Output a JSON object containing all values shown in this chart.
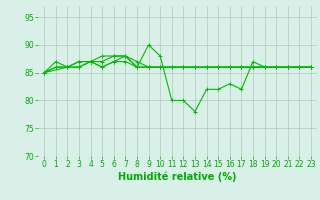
{
  "series": [
    {
      "x": [
        0,
        1,
        2,
        3,
        4,
        5,
        6,
        7,
        8,
        9,
        10,
        11,
        12,
        13,
        14,
        15,
        16,
        17,
        18,
        19,
        20,
        21,
        22,
        23
      ],
      "y": [
        85,
        87,
        86,
        87,
        87,
        88,
        88,
        88,
        86,
        90,
        88,
        80,
        80,
        78,
        82,
        82,
        83,
        82,
        87,
        86,
        86,
        86,
        86,
        86
      ]
    },
    {
      "x": [
        0,
        1,
        2,
        3,
        4,
        5,
        6,
        7,
        8,
        9,
        10,
        11,
        12,
        13,
        14,
        15,
        16,
        17,
        18,
        19,
        20,
        21,
        22,
        23
      ],
      "y": [
        85,
        86,
        86,
        86,
        87,
        86,
        87,
        88,
        86,
        86,
        86,
        86,
        86,
        86,
        86,
        86,
        86,
        86,
        86,
        86,
        86,
        86,
        86,
        86
      ]
    },
    {
      "x": [
        0,
        1,
        2,
        3,
        4,
        5,
        6,
        7,
        8,
        9,
        10,
        11,
        12,
        13,
        14,
        15,
        16,
        17,
        18,
        19,
        20,
        21,
        22,
        23
      ],
      "y": [
        85,
        86,
        86,
        87,
        87,
        87,
        88,
        88,
        87,
        86,
        86,
        86,
        86,
        86,
        86,
        86,
        86,
        86,
        86,
        86,
        86,
        86,
        86,
        86
      ]
    },
    {
      "x": [
        0,
        2,
        3,
        4,
        5,
        6,
        7,
        8,
        9,
        10,
        11,
        12,
        13,
        14,
        15,
        16,
        17,
        18,
        19,
        20,
        21,
        22,
        23
      ],
      "y": [
        85,
        86,
        86,
        87,
        86,
        87,
        87,
        86,
        86,
        86,
        86,
        86,
        86,
        86,
        86,
        86,
        86,
        86,
        86,
        86,
        86,
        86,
        86
      ]
    }
  ],
  "line_color": "#00bb00",
  "marker": "+",
  "markersize": 3,
  "linewidth": 0.8,
  "background_color": "#d8f0e8",
  "grid_color": "#b0c8b8",
  "xlabel": "Humidité relative (%)",
  "xlabel_color": "#00aa00",
  "xlabel_fontsize": 7,
  "tick_color": "#00aa00",
  "tick_fontsize": 5.5,
  "ylim": [
    70,
    97
  ],
  "xlim": [
    -0.5,
    23.5
  ],
  "yticks": [
    70,
    75,
    80,
    85,
    90,
    95
  ],
  "xticks": [
    0,
    1,
    2,
    3,
    4,
    5,
    6,
    7,
    8,
    9,
    10,
    11,
    12,
    13,
    14,
    15,
    16,
    17,
    18,
    19,
    20,
    21,
    22,
    23
  ]
}
